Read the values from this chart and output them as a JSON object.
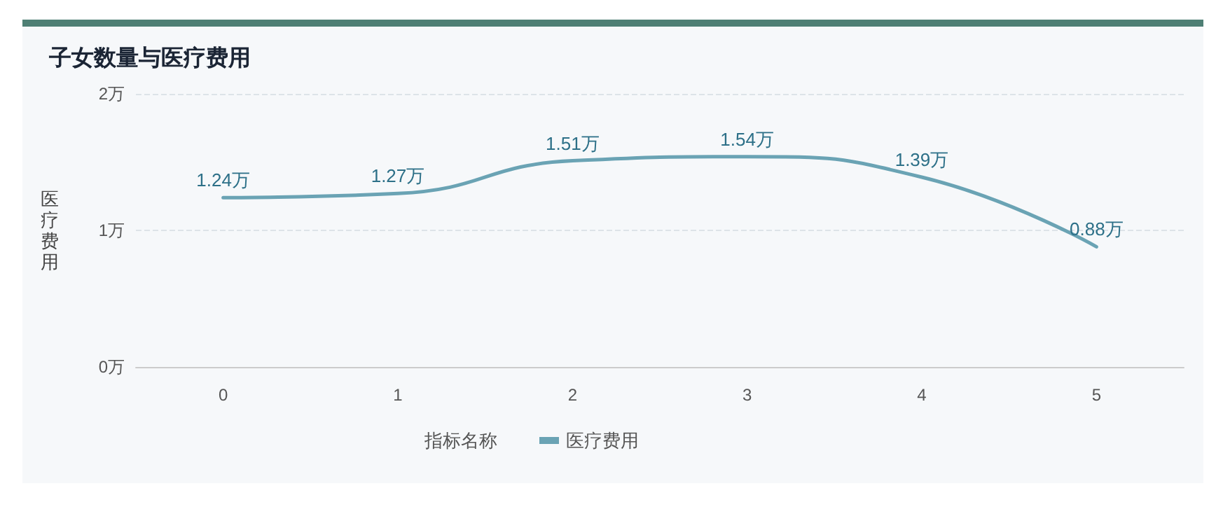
{
  "chart_data": {
    "type": "line",
    "title": "子女数量与医疗费用",
    "ylabel": "医疗费用",
    "legend_title": "指标名称",
    "categories": [
      "0",
      "1",
      "2",
      "3",
      "4",
      "5"
    ],
    "series": [
      {
        "name": "医疗费用",
        "color": "#6aa3b4",
        "values": [
          1.24,
          1.27,
          1.51,
          1.54,
          1.39,
          0.88
        ],
        "value_labels": [
          "1.24万",
          "1.27万",
          "1.51万",
          "1.54万",
          "1.39万",
          "0.88万"
        ]
      }
    ],
    "ylim": [
      0,
      2
    ],
    "yticks": [
      {
        "value": 0,
        "label": "0万"
      },
      {
        "value": 1,
        "label": "1万"
      },
      {
        "value": 2,
        "label": "2万"
      }
    ],
    "grid": "y",
    "legend": "bottom",
    "marker": "none",
    "line_style": "solid"
  }
}
